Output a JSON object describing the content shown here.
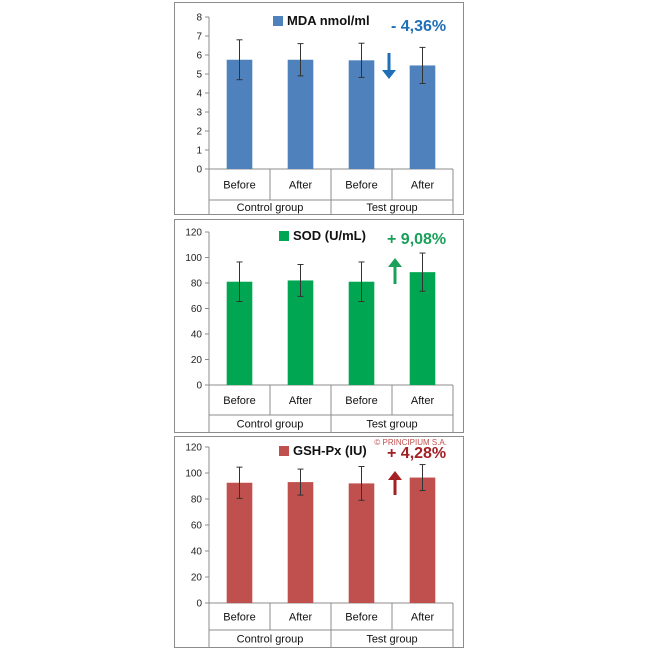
{
  "copyright": "© PRINCIPIUM S.A.",
  "chart_data": [
    {
      "type": "bar",
      "series_name": "MDA nmol/ml",
      "categories": [
        "Before",
        "After",
        "Before",
        "After"
      ],
      "groups": [
        "Control group",
        "Test group"
      ],
      "values": [
        5.75,
        5.75,
        5.72,
        5.45
      ],
      "errors": [
        1.05,
        0.85,
        0.9,
        0.95
      ],
      "ylim": [
        0,
        8
      ],
      "yticks": [
        "0",
        "1",
        "2",
        "3",
        "4",
        "5",
        "6",
        "7",
        "8"
      ],
      "change_label": "- 4,36%",
      "change_direction": "down",
      "color": "#4f81bd",
      "accent": "#1f6fb8"
    },
    {
      "type": "bar",
      "series_name": "SOD (U/mL)",
      "categories": [
        "Before",
        "After",
        "Before",
        "After"
      ],
      "groups": [
        "Control group",
        "Test group"
      ],
      "values": [
        81,
        82,
        81,
        88.5
      ],
      "errors": [
        15.5,
        12.5,
        15.5,
        15
      ],
      "ylim": [
        0,
        120
      ],
      "yticks": [
        "0",
        "20",
        "40",
        "60",
        "80",
        "100",
        "120"
      ],
      "change_label": "+ 9,08%",
      "change_direction": "up",
      "color": "#00a651",
      "accent": "#1aa05a"
    },
    {
      "type": "bar",
      "series_name": "GSH-Px (IU)",
      "categories": [
        "Before",
        "After",
        "Before",
        "After"
      ],
      "groups": [
        "Control group",
        "Test group"
      ],
      "values": [
        92.5,
        93,
        92,
        96.5
      ],
      "errors": [
        12,
        10,
        13,
        10
      ],
      "ylim": [
        0,
        120
      ],
      "yticks": [
        "0",
        "20",
        "40",
        "60",
        "80",
        "100",
        "120"
      ],
      "change_label": "+ 4,28%",
      "change_direction": "up",
      "color": "#c0504d",
      "accent": "#a32025"
    }
  ]
}
